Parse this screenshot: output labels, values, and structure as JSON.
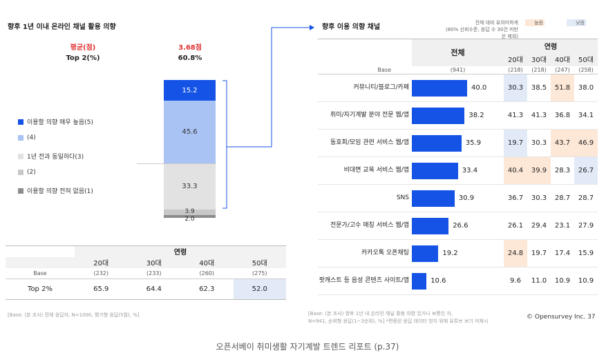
{
  "left": {
    "title": "향후 1년 이내 온라인 채널 활용 의향",
    "avg_label": "평균(점)",
    "avg_value": "3.68점",
    "top2_label": "Top 2(%)",
    "top2_value": "60.8%",
    "legend": [
      "이용할 의향 매우 높음(5)",
      "(4)",
      "1년 전과 동일하다(3)",
      "(2)",
      "이용할 의향 전혀 없음(1)"
    ],
    "stack_labels": [
      "15.2",
      "45.6",
      "33.3",
      "3.9",
      "2.0"
    ],
    "table": {
      "group_header": "연령",
      "headers": [
        "20대",
        "30대",
        "40대",
        "50대"
      ],
      "base_label": "Base",
      "base": [
        "(232)",
        "(233)",
        "(260)",
        "(275)"
      ],
      "row_label": "Top 2%",
      "values": [
        "65.9",
        "64.4",
        "62.3",
        "52.0"
      ]
    },
    "note": "[Base: (본 조사) 전체 응답자, N=1000, 평가형 응답(5점), %]"
  },
  "right": {
    "title": "향후 이용 의향 채널",
    "sig_note_line1": "전체 대비 유의미하게",
    "sig_note_line2": "(80% 신뢰수준, 응답 수 30건 미만은 제외)",
    "sig_high": "높음",
    "sig_low": "낮음",
    "col_total": "전체",
    "group_header": "연령",
    "age_headers": [
      "20대",
      "30대",
      "40대",
      "50대"
    ],
    "base_label": "Base",
    "base_total": "(941)",
    "base_ages": [
      "(218)",
      "(218)",
      "(247)",
      "(258)"
    ],
    "rows": [
      {
        "label": "커뮤니티/블로그/카페",
        "total": "40.0",
        "ages": [
          "30.3",
          "38.5",
          "51.8",
          "38.0"
        ]
      },
      {
        "label": "취미/자기계발 분야 전문 웹/앱",
        "total": "38.2",
        "ages": [
          "41.3",
          "41.3",
          "36.8",
          "34.1"
        ]
      },
      {
        "label": "동호회/모임 관련 서비스 웹/앱",
        "total": "35.9",
        "ages": [
          "19.7",
          "30.3",
          "43.7",
          "46.9"
        ]
      },
      {
        "label": "비대면 교육 서비스 웹/앱",
        "total": "33.4",
        "ages": [
          "40.4",
          "39.9",
          "28.3",
          "26.7"
        ]
      },
      {
        "label": "SNS",
        "total": "30.9",
        "ages": [
          "36.7",
          "30.3",
          "28.7",
          "28.7"
        ]
      },
      {
        "label": "전문가/고수 매칭 서비스 웹/앱",
        "total": "26.6",
        "ages": [
          "26.1",
          "29.4",
          "23.1",
          "27.9"
        ]
      },
      {
        "label": "카카오톡 오픈채팅",
        "total": "19.2",
        "ages": [
          "24.8",
          "19.7",
          "17.4",
          "15.9"
        ]
      },
      {
        "label": "팟캐스트 등 음성 콘텐츠 사이트/앱",
        "total": "10.6",
        "ages": [
          "9.6",
          "11.0",
          "10.9",
          "10.9"
        ]
      }
    ],
    "note_line1": "[Base: (본 조사) 향후 1년 내 온라인 채널 활용 의향 있거나 보통인 자,",
    "note_line2": "N=941, 순위형 응답(1~3순위), %] *편중된 응답 데이터 방지 위해 유튜브 보기 미제시"
  },
  "brand": "© Opensurvey Inc.  37",
  "caption": "오픈서베이 취미생활 자기계발 트렌드 리포트 (p.37)",
  "colors": {
    "blue": "#1553e6",
    "light_blue": "#a9c3f5",
    "gray_light": "#e2e2e2",
    "gray_mid": "#c8c8c8",
    "gray_dark": "#8c8c8c",
    "high": "#fde7d6",
    "low": "#e2eaf8"
  },
  "chart_data": [
    {
      "type": "bar",
      "stacked": true,
      "categories": [
        "이용할 의향 매우 높음(5)",
        "(4)",
        "1년 전과 동일하다(3)",
        "(2)",
        "이용할 의향 전혀 없음(1)"
      ],
      "values": [
        15.2,
        45.6,
        33.3,
        3.9,
        2.0
      ]
    },
    {
      "type": "bar",
      "orientation": "horizontal",
      "categories": [
        "커뮤니티/블로그/카페",
        "취미/자기계발 분야 전문 웹/앱",
        "동호회/모임 관련 서비스 웹/앱",
        "비대면 교육 서비스 웹/앱",
        "SNS",
        "전문가/고수 매칭 서비스 웹/앱",
        "카카오톡 오픈채팅",
        "팟캐스트 등 음성 콘텐츠 사이트/앱"
      ],
      "values": [
        40.0,
        38.2,
        35.9,
        33.4,
        30.9,
        26.6,
        19.2,
        10.6
      ],
      "age_table": {
        "20대": [
          30.3,
          41.3,
          19.7,
          40.4,
          36.7,
          26.1,
          24.8,
          9.6
        ],
        "30대": [
          38.5,
          41.3,
          30.3,
          39.9,
          30.3,
          29.4,
          19.7,
          11.0
        ],
        "40대": [
          51.8,
          36.8,
          43.7,
          28.3,
          28.7,
          23.1,
          17.4,
          10.9
        ],
        "50대": [
          38.0,
          34.1,
          46.9,
          26.7,
          28.7,
          27.9,
          15.9,
          10.9
        ]
      },
      "significance": {
        "high": [
          [
            0,
            2
          ],
          [
            2,
            2
          ],
          [
            2,
            3
          ],
          [
            3,
            0
          ],
          [
            3,
            1
          ],
          [
            6,
            0
          ]
        ],
        "low": [
          [
            0,
            0
          ],
          [
            2,
            0
          ],
          [
            3,
            3
          ]
        ]
      }
    }
  ]
}
